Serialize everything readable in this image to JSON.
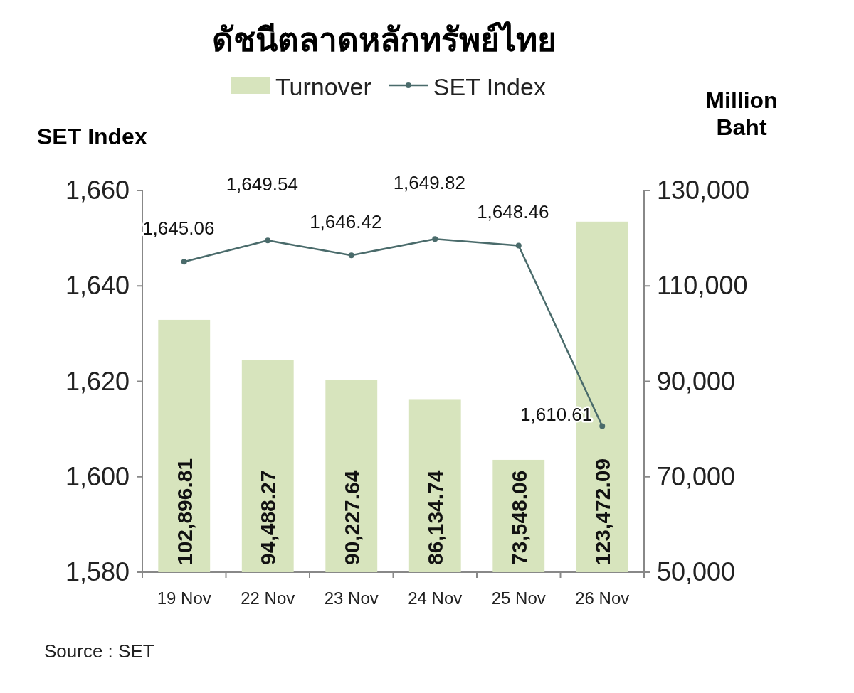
{
  "chart_data": {
    "type": "bar",
    "title": "ดัชนีตลาดหลักทรัพย์ไทย",
    "ylabel": "SET Index",
    "y2label": "Million Baht",
    "categories": [
      "19 Nov",
      "22 Nov",
      "23 Nov",
      "24 Nov",
      "25 Nov",
      "26 Nov"
    ],
    "series": [
      {
        "name": "Turnover",
        "axis": "y2",
        "color": "#d7e4bd",
        "values": [
          102896.81,
          94488.27,
          90227.64,
          86134.74,
          73548.06,
          123472.09
        ],
        "value_labels": [
          "102,896.81",
          "94,488.27",
          "90,227.64",
          "86,134.74",
          "73,548.06",
          "123,472.09"
        ]
      },
      {
        "name": "SET Index",
        "type": "line",
        "axis": "y",
        "color": "#4a6b6b",
        "marker": "circle",
        "values": [
          1645.06,
          1649.54,
          1646.42,
          1649.82,
          1648.46,
          1610.61
        ],
        "value_labels": [
          "1,645.06",
          "1,649.54",
          "1,646.42",
          "1,649.82",
          "1,648.46",
          "1,610.61"
        ]
      }
    ],
    "ylim": [
      1580,
      1660
    ],
    "yticks": [
      {
        "value": 1580,
        "label": "1,580"
      },
      {
        "value": 1600,
        "label": "1,600"
      },
      {
        "value": 1620,
        "label": "1,620"
      },
      {
        "value": 1640,
        "label": "1,640"
      },
      {
        "value": 1660,
        "label": "1,660"
      }
    ],
    "y2lim": [
      50000,
      130000
    ],
    "y2ticks": [
      {
        "value": 50000,
        "label": "50,000"
      },
      {
        "value": 70000,
        "label": "70,000"
      },
      {
        "value": 90000,
        "label": "90,000"
      },
      {
        "value": 110000,
        "label": "110,000"
      },
      {
        "value": 130000,
        "label": "130,000"
      }
    ],
    "legend": "top",
    "grid": false,
    "annotations": [
      "Source : SET"
    ]
  }
}
